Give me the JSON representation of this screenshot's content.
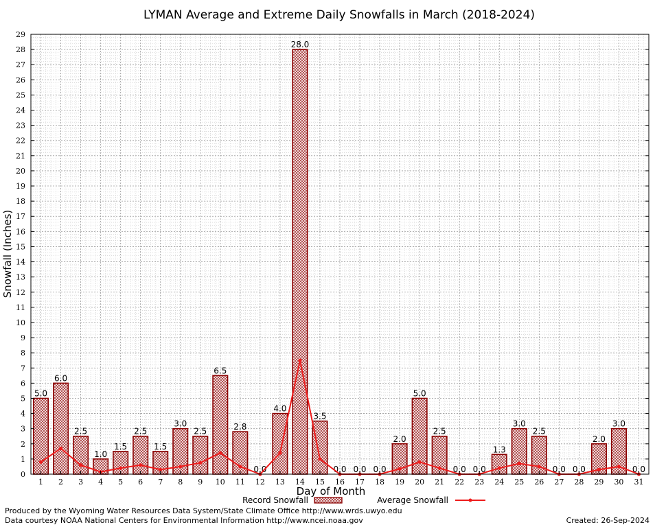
{
  "chart_data": {
    "type": "bar",
    "title": "LYMAN Average and Extreme Daily Snowfalls in March (2018-2024)",
    "xlabel": "Day of Month",
    "ylabel": "Snowfall (Inches)",
    "ylim": [
      0,
      29
    ],
    "ytick_step": 1,
    "grid": true,
    "legend_position": "bottom",
    "categories": [
      "1",
      "2",
      "3",
      "4",
      "5",
      "6",
      "7",
      "8",
      "9",
      "10",
      "11",
      "12",
      "13",
      "14",
      "15",
      "16",
      "17",
      "18",
      "19",
      "20",
      "21",
      "22",
      "23",
      "24",
      "25",
      "26",
      "27",
      "28",
      "29",
      "30",
      "31"
    ],
    "series": [
      {
        "name": "Record Snowfall",
        "kind": "bar",
        "color": "#8b0000",
        "values": [
          5.0,
          6.0,
          2.5,
          1.0,
          1.5,
          2.5,
          1.5,
          3.0,
          2.5,
          6.5,
          2.8,
          0.0,
          4.0,
          28.0,
          3.5,
          0.0,
          0.0,
          0.0,
          2.0,
          5.0,
          2.5,
          0.0,
          0.0,
          1.3,
          3.0,
          2.5,
          0.0,
          0.0,
          2.0,
          3.0,
          0.0
        ],
        "labels": [
          "5.0",
          "6.0",
          "2.5",
          "1.0",
          "1.5",
          "2.5",
          "1.5",
          "3.0",
          "2.5",
          "6.5",
          "2.8",
          "0.0",
          "4.0",
          "28.0",
          "3.5",
          "0.0",
          "0.0",
          "0.0",
          "2.0",
          "5.0",
          "2.5",
          "0.0",
          "0.0",
          "1.3",
          "3.0",
          "2.5",
          "0.0",
          "0.0",
          "2.0",
          "3.0",
          "0.0"
        ]
      },
      {
        "name": "Average Snowfall",
        "kind": "line",
        "color": "#ee1c1c",
        "values": [
          0.8,
          1.7,
          0.6,
          0.15,
          0.4,
          0.6,
          0.3,
          0.5,
          0.75,
          1.4,
          0.5,
          0.0,
          1.4,
          7.5,
          1.0,
          0.0,
          0.0,
          0.0,
          0.35,
          0.8,
          0.4,
          0.0,
          0.0,
          0.4,
          0.7,
          0.5,
          0.0,
          0.0,
          0.3,
          0.5,
          0.0
        ]
      }
    ]
  },
  "footer": {
    "produced_by": "Produced by the Wyoming Water Resources Data System/State Climate Office http://www.wrds.uwyo.edu",
    "data_courtesy": "Data courtesy NOAA National Centers for Environmental Information http://www.ncei.noaa.gov",
    "created": "Created:  26-Sep-2024"
  }
}
